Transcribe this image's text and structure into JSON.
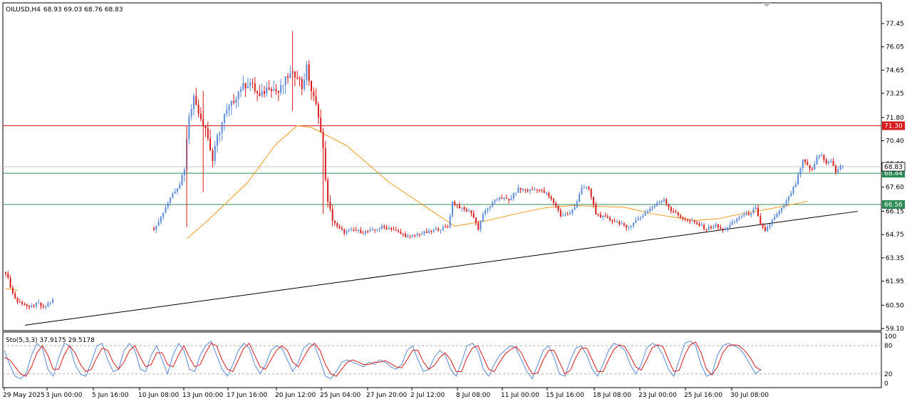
{
  "header": {
    "symbol": "OILUSD,H4",
    "ohlc": "68.93 69.03 68.76 68.83"
  },
  "indicator": {
    "label": "Sto(5,3,3) 37.9175 29.5178",
    "levels": [
      "100",
      "80",
      "20",
      "0"
    ]
  },
  "colors": {
    "bull": "#5b8ad8",
    "bear": "#d81b1b",
    "ma": "#f39a1f",
    "resistance": "#d81b1b",
    "support": "#2e8b57",
    "trendline": "#000000",
    "stoch_main": "#5b8ad8",
    "stoch_signal": "#d81b1b",
    "price_tag_fg": "#ffffff"
  },
  "chart_data": [
    {
      "type": "candlestick",
      "symbol": "OILUSD",
      "timeframe": "H4",
      "y_ticks": [
        "77.45",
        "76.05",
        "74.65",
        "73.25",
        "71.80",
        "70.40",
        "69.00",
        "67.60",
        "66.15",
        "64.75",
        "63.35",
        "61.95",
        "60.50",
        "59.10"
      ],
      "ylim": [
        59.1,
        77.45
      ],
      "x_labels": [
        "29 May 2025",
        "3 Jun 00:00",
        "5 Jun 16:00",
        "10 Jun 08:00",
        "13 Jun 00:00",
        "17 Jun 16:00",
        "20 Jun 12:00",
        "25 Jun 04:00",
        "27 Jun 20:00",
        "2 Jul 12:00",
        "8 Jul 08:00",
        "11 Jul 00:00",
        "15 Jul 16:00",
        "18 Jul 08:00",
        "23 Jul 00:00",
        "25 Jul 16:00",
        "30 Jul 08:00"
      ],
      "current_price": 68.83,
      "horizontal_levels": [
        {
          "value": 71.3,
          "label": "71.30",
          "color": "#d81b1b"
        },
        {
          "value": 68.44,
          "label": "68.44",
          "color": "#2e8b57"
        },
        {
          "value": 66.56,
          "label": "66.56",
          "color": "#2e8b57"
        }
      ],
      "price_tag": {
        "value": 68.83,
        "label": "68.83"
      },
      "trendline": {
        "from": {
          "x": "29 May 2025",
          "y": 59.3
        },
        "to": {
          "x": "1 Aug 2025",
          "y": 66.15
        }
      },
      "moving_average_points": [
        [
          "29 May 2025",
          61.5
        ],
        [
          "30 May 2025",
          61.4
        ],
        [
          "11 Jun 08:00",
          64.5
        ],
        [
          "13 Jun 12:00",
          65.6
        ],
        [
          "17 Jun 00:00",
          67.9
        ],
        [
          "19 Jun 00:00",
          70.2
        ],
        [
          "20 Jun 12:00",
          71.3
        ],
        [
          "21 Jun 12:00",
          71.2
        ],
        [
          "24 Jun 00:00",
          70.1
        ],
        [
          "27 Jun 00:00",
          67.9
        ],
        [
          "1 Jul 00:00",
          66.2
        ],
        [
          "3 Jul 00:00",
          65.25
        ],
        [
          "7 Jul 00:00",
          65.6
        ],
        [
          "9 Jul 00:00",
          66.0
        ],
        [
          "11 Jul 00:00",
          66.35
        ],
        [
          "14 Jul 00:00",
          66.5
        ],
        [
          "18 Jul 00:00",
          66.4
        ],
        [
          "21 Jul 00:00",
          66.0
        ],
        [
          "24 Jul 00:00",
          65.6
        ],
        [
          "26 Jul 00:00",
          65.7
        ],
        [
          "28 Jul 00:00",
          66.0
        ],
        [
          "30 Jul 08:00",
          66.35
        ],
        [
          "31 Jul 16:00",
          66.75
        ]
      ],
      "price_path": [
        [
          0,
          62.5
        ],
        [
          3,
          61.2
        ],
        [
          5,
          60.7
        ],
        [
          8,
          60.6
        ],
        [
          10,
          60.3
        ],
        [
          12,
          60.5
        ],
        [
          14,
          60.6
        ],
        [
          16,
          60.3
        ],
        [
          18,
          60.6
        ],
        [
          20,
          60.8
        ],
        [
          62,
          64.9
        ],
        [
          66,
          65.8
        ],
        [
          70,
          67.0
        ],
        [
          74,
          67.8
        ],
        [
          76,
          68.8
        ],
        [
          78,
          72.0
        ],
        [
          80,
          73.0
        ],
        [
          83,
          71.8
        ],
        [
          85,
          71.2
        ],
        [
          88,
          69.2
        ],
        [
          90,
          70.6
        ],
        [
          93,
          71.9
        ],
        [
          96,
          72.6
        ],
        [
          100,
          73.6
        ],
        [
          104,
          73.9
        ],
        [
          108,
          73.0
        ],
        [
          112,
          73.7
        ],
        [
          116,
          73.3
        ],
        [
          120,
          74.3
        ],
        [
          124,
          74.4
        ],
        [
          126,
          73.6
        ],
        [
          128,
          74.8
        ],
        [
          130,
          73.4
        ],
        [
          133,
          72.0
        ],
        [
          135,
          69.8
        ],
        [
          137,
          66.6
        ],
        [
          139,
          65.7
        ],
        [
          141,
          65.2
        ],
        [
          144,
          64.9
        ],
        [
          148,
          65.0
        ],
        [
          152,
          64.9
        ],
        [
          156,
          65.0
        ],
        [
          160,
          65.2
        ],
        [
          164,
          65.1
        ],
        [
          168,
          64.8
        ],
        [
          172,
          64.6
        ],
        [
          176,
          64.8
        ],
        [
          180,
          64.9
        ],
        [
          184,
          65.1
        ],
        [
          188,
          65.2
        ],
        [
          190,
          66.7
        ],
        [
          194,
          66.3
        ],
        [
          198,
          66.1
        ],
        [
          201,
          65.1
        ],
        [
          203,
          66.0
        ],
        [
          206,
          66.5
        ],
        [
          210,
          67.0
        ],
        [
          214,
          66.8
        ],
        [
          218,
          67.5
        ],
        [
          222,
          67.4
        ],
        [
          226,
          67.5
        ],
        [
          230,
          67.2
        ],
        [
          234,
          66.5
        ],
        [
          236,
          65.9
        ],
        [
          240,
          66.0
        ],
        [
          242,
          66.4
        ],
        [
          245,
          67.6
        ],
        [
          248,
          67.5
        ],
        [
          251,
          66.0
        ],
        [
          254,
          65.8
        ],
        [
          258,
          65.6
        ],
        [
          262,
          65.4
        ],
        [
          264,
          65.1
        ],
        [
          267,
          65.5
        ],
        [
          270,
          65.8
        ],
        [
          274,
          66.3
        ],
        [
          277,
          66.6
        ],
        [
          280,
          66.9
        ],
        [
          283,
          66.2
        ],
        [
          286,
          65.9
        ],
        [
          290,
          65.6
        ],
        [
          294,
          65.4
        ],
        [
          298,
          65.1
        ],
        [
          302,
          65.3
        ],
        [
          305,
          65.0
        ],
        [
          308,
          65.3
        ],
        [
          312,
          65.8
        ],
        [
          316,
          66.0
        ],
        [
          319,
          66.3
        ],
        [
          321,
          65.3
        ],
        [
          323,
          65.0
        ],
        [
          326,
          65.6
        ],
        [
          330,
          66.3
        ],
        [
          333,
          67.0
        ],
        [
          336,
          67.8
        ],
        [
          339,
          69.2
        ],
        [
          341,
          68.9
        ],
        [
          343,
          68.6
        ],
        [
          345,
          69.4
        ],
        [
          347,
          69.6
        ],
        [
          349,
          69.0
        ],
        [
          351,
          69.2
        ],
        [
          353,
          68.5
        ],
        [
          355,
          68.9
        ],
        [
          356,
          68.83
        ]
      ]
    },
    {
      "type": "line",
      "name": "Sto(5,3,3)",
      "ylim": [
        0,
        100
      ],
      "levels": [
        80,
        20
      ],
      "series_main_values": [
        70,
        40,
        15,
        10,
        20,
        60,
        85,
        75,
        30,
        15,
        55,
        85,
        80,
        40,
        20,
        15,
        45,
        80,
        85,
        50,
        25,
        30,
        70,
        85,
        70,
        30,
        25,
        60,
        80,
        50,
        20,
        60,
        85,
        70,
        30,
        25,
        60,
        80,
        90,
        60,
        30,
        15,
        40,
        70,
        85,
        75,
        40,
        20,
        40,
        70,
        80,
        75,
        50,
        25,
        45,
        75,
        85,
        80,
        50,
        15,
        10,
        25,
        45,
        50,
        45,
        40,
        35,
        45,
        40,
        50,
        45,
        35,
        30,
        40,
        70,
        80,
        50,
        25,
        30,
        55,
        70,
        60,
        30,
        15,
        45,
        80,
        85,
        70,
        30,
        15,
        40,
        60,
        70,
        80,
        75,
        50,
        25,
        10,
        40,
        70,
        80,
        55,
        20,
        15,
        50,
        75,
        80,
        60,
        30,
        15,
        40,
        70,
        85,
        80,
        70,
        40,
        20,
        40,
        75,
        85,
        80,
        60,
        30,
        15,
        50,
        85,
        90,
        80,
        40,
        15,
        20,
        60,
        80,
        85,
        80,
        75,
        60,
        40,
        20,
        30
      ],
      "series_signal_values": [
        55,
        50,
        35,
        20,
        15,
        35,
        65,
        80,
        60,
        30,
        30,
        60,
        80,
        65,
        40,
        25,
        30,
        55,
        75,
        70,
        45,
        30,
        45,
        70,
        80,
        55,
        35,
        40,
        65,
        65,
        40,
        35,
        60,
        80,
        55,
        35,
        40,
        65,
        85,
        80,
        50,
        30,
        25,
        50,
        75,
        85,
        60,
        35,
        30,
        50,
        70,
        80,
        70,
        45,
        35,
        55,
        75,
        85,
        70,
        40,
        20,
        15,
        30,
        45,
        50,
        45,
        40,
        40,
        45,
        45,
        48,
        42,
        35,
        33,
        50,
        70,
        70,
        45,
        30,
        38,
        55,
        65,
        50,
        25,
        25,
        55,
        75,
        80,
        55,
        30,
        25,
        45,
        62,
        72,
        78,
        65,
        40,
        20,
        22,
        50,
        70,
        70,
        45,
        20,
        28,
        55,
        75,
        75,
        50,
        25,
        25,
        50,
        72,
        82,
        78,
        58,
        35,
        28,
        50,
        75,
        82,
        78,
        50,
        25,
        28,
        60,
        82,
        88,
        65,
        30,
        18,
        35,
        65,
        80,
        82,
        80,
        70,
        55,
        35,
        28
      ],
      "current_main": 37.9175,
      "current_signal": 29.5178
    }
  ]
}
